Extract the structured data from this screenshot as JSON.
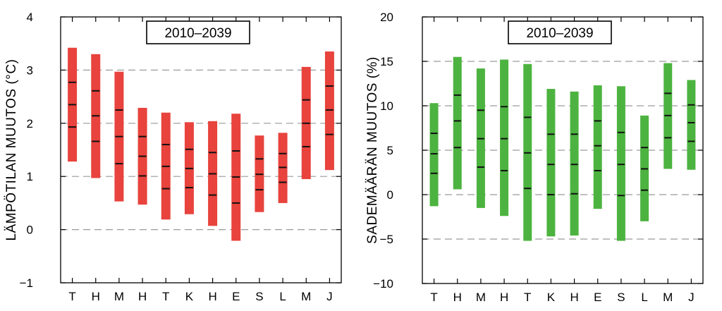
{
  "chart_data": [
    {
      "type": "bar",
      "subtype": "range-bars-with-percentile-markers",
      "period_label": "2010–2039",
      "ylabel": "LÄMPÖTILAN MUUTOS (°C)",
      "xlabel": "",
      "ylim": [
        -1,
        4
      ],
      "yticks": [
        -1,
        0,
        1,
        2,
        3,
        4
      ],
      "ytick_labels": [
        "−1",
        "0",
        "1",
        "2",
        "3",
        "4"
      ],
      "gridlines_dashed_at": [
        0,
        1,
        2,
        3
      ],
      "color": "#e8433d",
      "categories": [
        "T",
        "H",
        "M",
        "H",
        "T",
        "K",
        "H",
        "E",
        "S",
        "L",
        "M",
        "J"
      ],
      "ranges": [
        [
          1.28,
          3.42
        ],
        [
          0.97,
          3.3
        ],
        [
          0.53,
          2.97
        ],
        [
          0.47,
          2.29
        ],
        [
          0.19,
          2.2
        ],
        [
          0.29,
          2.02
        ],
        [
          0.07,
          2.04
        ],
        [
          -0.21,
          2.18
        ],
        [
          0.33,
          1.77
        ],
        [
          0.5,
          1.82
        ],
        [
          0.95,
          3.06
        ],
        [
          1.12,
          3.35
        ]
      ],
      "markers": [
        [
          1.93,
          2.35,
          2.77
        ],
        [
          1.66,
          2.14,
          2.61
        ],
        [
          1.24,
          1.75,
          2.25
        ],
        [
          1.01,
          1.38,
          1.75
        ],
        [
          0.77,
          1.19,
          1.6
        ],
        [
          0.79,
          1.15,
          1.51
        ],
        [
          0.65,
          1.05,
          1.45
        ],
        [
          0.5,
          0.99,
          1.48
        ],
        [
          0.75,
          1.04,
          1.33
        ],
        [
          0.89,
          1.17,
          1.43
        ],
        [
          1.56,
          2.0,
          2.44
        ],
        [
          1.79,
          2.25,
          2.7
        ]
      ]
    },
    {
      "type": "bar",
      "subtype": "range-bars-with-percentile-markers",
      "period_label": "2010–2039",
      "ylabel": "SADEMÄÄRÄN MUUTOS (%)",
      "xlabel": "",
      "ylim": [
        -10,
        20
      ],
      "yticks": [
        -10,
        -5,
        0,
        5,
        10,
        15,
        20
      ],
      "ytick_labels": [
        "−10",
        "−5",
        "0",
        "5",
        "10",
        "15",
        "20"
      ],
      "gridlines_dashed_at": [
        -5,
        0,
        5,
        10,
        15
      ],
      "color": "#4db340",
      "categories": [
        "T",
        "H",
        "M",
        "H",
        "T",
        "K",
        "H",
        "E",
        "S",
        "L",
        "M",
        "J"
      ],
      "ranges": [
        [
          -1.3,
          10.3
        ],
        [
          0.6,
          15.5
        ],
        [
          -1.5,
          14.2
        ],
        [
          -2.4,
          15.2
        ],
        [
          -5.2,
          14.7
        ],
        [
          -4.7,
          11.9
        ],
        [
          -4.6,
          11.6
        ],
        [
          -1.6,
          12.3
        ],
        [
          -5.2,
          12.2
        ],
        [
          -3.0,
          8.9
        ],
        [
          2.9,
          14.8
        ],
        [
          2.8,
          12.9
        ]
      ],
      "markers": [
        [
          2.4,
          4.6,
          6.9
        ],
        [
          5.3,
          8.3,
          11.2
        ],
        [
          3.1,
          6.3,
          9.5
        ],
        [
          2.7,
          6.3,
          9.9
        ],
        [
          0.7,
          4.7,
          8.7
        ],
        [
          0.0,
          3.4,
          6.8
        ],
        [
          0.1,
          3.4,
          6.8
        ],
        [
          2.7,
          5.5,
          8.3
        ],
        [
          -0.1,
          3.4,
          7.0
        ],
        [
          0.5,
          2.9,
          5.3
        ],
        [
          6.4,
          8.9,
          11.4
        ],
        [
          6.0,
          8.1,
          10.1
        ]
      ]
    }
  ]
}
